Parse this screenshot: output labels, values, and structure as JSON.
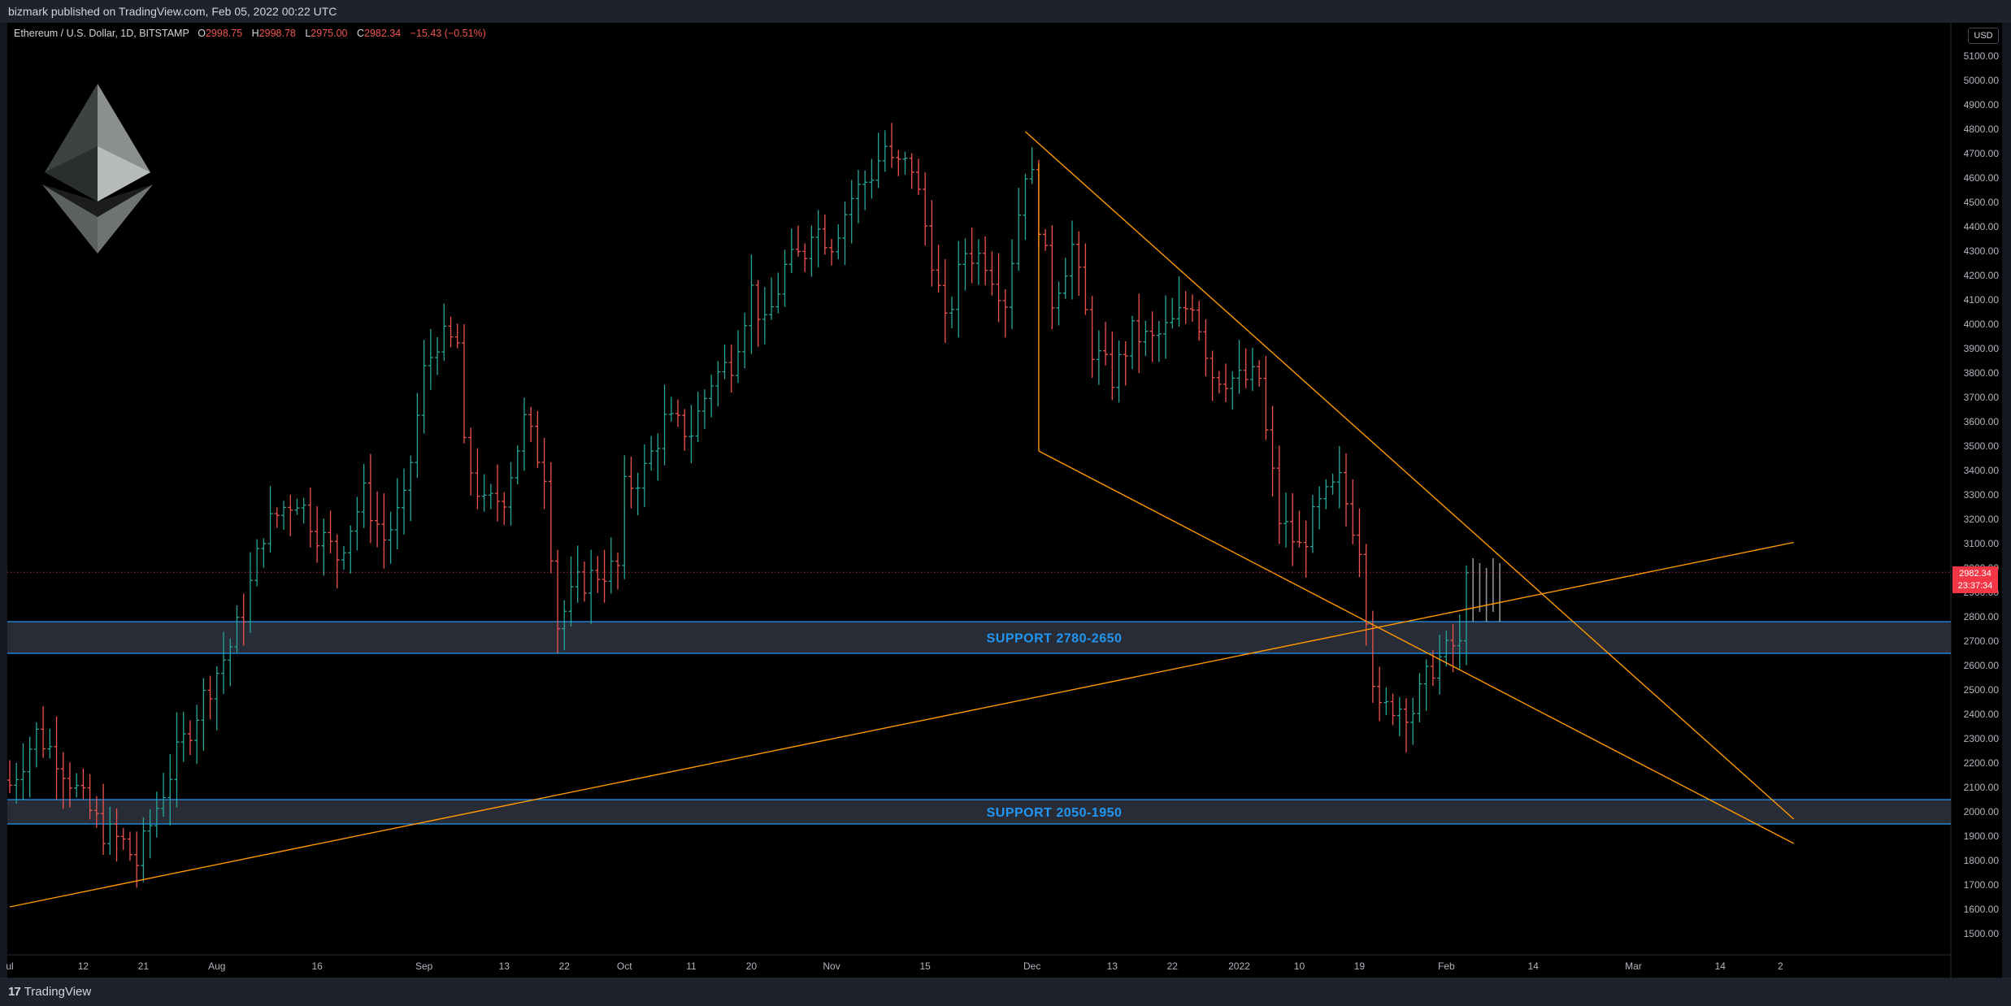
{
  "header": {
    "published": "bizmark published on TradingView.com, Feb 05, 2022 00:22 UTC"
  },
  "legend": {
    "symbol": "Ethereum / U.S. Dollar, 1D, BITSTAMP",
    "o_label": "O",
    "o_value": "2998.75",
    "h_label": "H",
    "h_value": "2998.78",
    "l_label": "L",
    "l_value": "2975.00",
    "c_label": "C",
    "c_value": "2982.34",
    "change": "−15.43 (−0.51%)"
  },
  "axis": {
    "currency": "USD",
    "last_price": "2982.34",
    "countdown": "23:37:34"
  },
  "footer": {
    "brand": "TradingView"
  },
  "logo": {
    "name": "ethereum-logo"
  },
  "colors": {
    "background": "#000000",
    "up": "#26a69a",
    "down": "#ef5350",
    "trendline": "#ff9800",
    "support_border": "#2196f3",
    "support_fill": "#2a2e39",
    "projection": "#b2b5be"
  },
  "chart_data": {
    "type": "ohlc",
    "title": "Ethereum / U.S. Dollar, 1D, BITSTAMP",
    "ylim": [
      1400,
      5200
    ],
    "y_ticks": [
      1500,
      1600,
      1700,
      1800,
      1900,
      2000,
      2100,
      2200,
      2300,
      2400,
      2500,
      2600,
      2700,
      2800,
      2900,
      3000,
      3100,
      3200,
      3300,
      3400,
      3500,
      3600,
      3700,
      3800,
      3900,
      4000,
      4100,
      4200,
      4300,
      4400,
      4500,
      4600,
      4700,
      4800,
      4900,
      5000,
      5100
    ],
    "x_ticks": [
      {
        "label": "ul",
        "date": "2021-07-01"
      },
      {
        "label": "12",
        "date": "2021-07-12"
      },
      {
        "label": "21",
        "date": "2021-07-21"
      },
      {
        "label": "Aug",
        "date": "2021-08-01"
      },
      {
        "label": "16",
        "date": "2021-08-16"
      },
      {
        "label": "Sep",
        "date": "2021-09-01"
      },
      {
        "label": "13",
        "date": "2021-09-13"
      },
      {
        "label": "22",
        "date": "2021-09-22"
      },
      {
        "label": "Oct",
        "date": "2021-10-01"
      },
      {
        "label": "11",
        "date": "2021-10-11"
      },
      {
        "label": "20",
        "date": "2021-10-20"
      },
      {
        "label": "Nov",
        "date": "2021-11-01"
      },
      {
        "label": "15",
        "date": "2021-11-15"
      },
      {
        "label": "Dec",
        "date": "2021-12-01"
      },
      {
        "label": "13",
        "date": "2021-12-13"
      },
      {
        "label": "22",
        "date": "2021-12-22"
      },
      {
        "label": "2022",
        "date": "2022-01-01"
      },
      {
        "label": "10",
        "date": "2022-01-10"
      },
      {
        "label": "19",
        "date": "2022-01-19"
      },
      {
        "label": "Feb",
        "date": "2022-02-01"
      },
      {
        "label": "14",
        "date": "2022-02-14"
      },
      {
        "label": "Mar",
        "date": "2022-03-01"
      },
      {
        "label": "14",
        "date": "2022-03-14"
      },
      {
        "label": "2",
        "date": "2022-03-23"
      }
    ],
    "close_keypoints": [
      [
        "2021-07-01",
        2110
      ],
      [
        "2021-07-05",
        2320
      ],
      [
        "2021-07-08",
        2230
      ],
      [
        "2021-07-12",
        2040
      ],
      [
        "2021-07-15",
        1920
      ],
      [
        "2021-07-18",
        1870
      ],
      [
        "2021-07-20",
        1790
      ],
      [
        "2021-07-23",
        2020
      ],
      [
        "2021-07-26",
        2230
      ],
      [
        "2021-07-30",
        2470
      ],
      [
        "2021-08-03",
        2680
      ],
      [
        "2021-08-05",
        2820
      ],
      [
        "2021-08-08",
        3150
      ],
      [
        "2021-08-11",
        3250
      ],
      [
        "2021-08-13",
        3290
      ],
      [
        "2021-08-16",
        3150
      ],
      [
        "2021-08-19",
        3050
      ],
      [
        "2021-08-23",
        3300
      ],
      [
        "2021-08-26",
        3120
      ],
      [
        "2021-08-29",
        3260
      ],
      [
        "2021-09-01",
        3800
      ],
      [
        "2021-09-03",
        3940
      ],
      [
        "2021-09-06",
        3920
      ],
      [
        "2021-09-07",
        3480
      ],
      [
        "2021-09-10",
        3250
      ],
      [
        "2021-09-13",
        3300
      ],
      [
        "2021-09-16",
        3600
      ],
      [
        "2021-09-19",
        3400
      ],
      [
        "2021-09-21",
        2770
      ],
      [
        "2021-09-24",
        2930
      ],
      [
        "2021-09-27",
        2980
      ],
      [
        "2021-09-30",
        3000
      ],
      [
        "2021-10-01",
        3320
      ],
      [
        "2021-10-04",
        3400
      ],
      [
        "2021-10-07",
        3600
      ],
      [
        "2021-10-11",
        3560
      ],
      [
        "2021-10-14",
        3770
      ],
      [
        "2021-10-17",
        3850
      ],
      [
        "2021-10-20",
        4140
      ],
      [
        "2021-10-22",
        3980
      ],
      [
        "2021-10-25",
        4230
      ],
      [
        "2021-10-28",
        4300
      ],
      [
        "2021-10-29",
        4410
      ],
      [
        "2021-11-01",
        4340
      ],
      [
        "2021-11-04",
        4520
      ],
      [
        "2021-11-07",
        4620
      ],
      [
        "2021-11-09",
        4730
      ],
      [
        "2021-11-10",
        4650
      ],
      [
        "2021-11-13",
        4650
      ],
      [
        "2021-11-16",
        4280
      ],
      [
        "2021-11-18",
        3990
      ],
      [
        "2021-11-21",
        4300
      ],
      [
        "2021-11-24",
        4270
      ],
      [
        "2021-11-27",
        4100
      ],
      [
        "2021-11-30",
        4640
      ],
      [
        "2021-12-01",
        4590
      ],
      [
        "2021-12-04",
        4100
      ],
      [
        "2021-12-07",
        4320
      ],
      [
        "2021-12-10",
        3900
      ],
      [
        "2021-12-13",
        3780
      ],
      [
        "2021-12-16",
        3960
      ],
      [
        "2021-12-19",
        3930
      ],
      [
        "2021-12-22",
        4000
      ],
      [
        "2021-12-25",
        4100
      ],
      [
        "2021-12-28",
        3800
      ],
      [
        "2022-01-01",
        3770
      ],
      [
        "2022-01-04",
        3780
      ],
      [
        "2022-01-05",
        3550
      ],
      [
        "2022-01-07",
        3200
      ],
      [
        "2022-01-10",
        3080
      ],
      [
        "2022-01-13",
        3250
      ],
      [
        "2022-01-16",
        3350
      ],
      [
        "2022-01-19",
        3100
      ],
      [
        "2022-01-21",
        2560
      ],
      [
        "2022-01-22",
        2400
      ],
      [
        "2022-01-24",
        2440
      ],
      [
        "2022-01-27",
        2420
      ],
      [
        "2022-01-30",
        2600
      ],
      [
        "2022-02-02",
        2680
      ],
      [
        "2022-02-03",
        2670
      ],
      [
        "2022-02-04",
        2980
      ]
    ],
    "last_close": 2982.34,
    "projection_bars": {
      "start": "2022-02-05",
      "count": 5,
      "low": 2780,
      "high": 3040
    },
    "support_zones": [
      {
        "label": "SUPPORT 2780-2650",
        "low": 2650,
        "high": 2780
      },
      {
        "label": "SUPPORT 2050-1950",
        "low": 1950,
        "high": 2050
      }
    ],
    "trendlines": [
      {
        "name": "rising-support",
        "from": [
          "2021-07-01",
          1610
        ],
        "to": [
          "2022-03-25",
          3105
        ]
      },
      {
        "name": "falling-resistance",
        "from": [
          "2021-11-30",
          4790
        ],
        "to": [
          "2022-03-25",
          1970
        ]
      },
      {
        "name": "falling-support",
        "from": [
          "2021-12-02",
          3480
        ],
        "to": [
          "2022-03-25",
          1870
        ]
      },
      {
        "name": "channel-connector",
        "from": [
          "2021-12-02",
          4660
        ],
        "to": [
          "2021-12-02",
          3480
        ]
      }
    ]
  }
}
